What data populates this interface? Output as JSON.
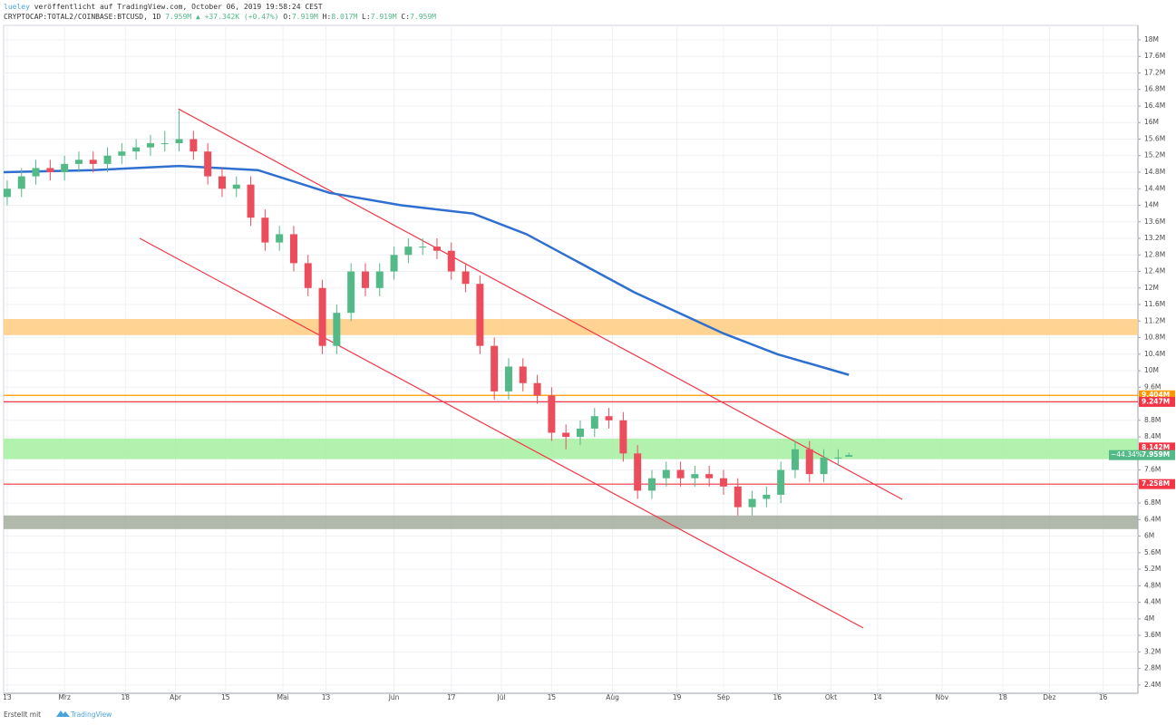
{
  "header": {
    "author": "lueley",
    "published": "veröffentlicht auf TradingView.com, October 06, 2019 19:58:24 CEST",
    "symbol": "CRYPTOCAP:TOTAL2/COINBASE:BTCUSD, 1D",
    "last": "7.959M",
    "change": "▲ +37.342K (+0.47%)",
    "o_label": "O:",
    "o": "7.919M",
    "h_label": "H:",
    "h": "8.017M",
    "l_label": "L:",
    "l": "7.919M",
    "c_label": "C:",
    "c": "7.959M"
  },
  "footer": {
    "text": "Erstellt mit",
    "brand": "TradingView"
  },
  "chart_data": {
    "type": "candlestick",
    "xlim": [
      -1,
      315.7
    ],
    "ylim": [
      2.2,
      18.35
    ],
    "grid": true,
    "up_color": "#53b987",
    "down_color": "#eb4d5c",
    "xticks": [
      {
        "value": 0,
        "label": "13"
      },
      {
        "value": 16,
        "label": "Mrz"
      },
      {
        "value": 33,
        "label": "18"
      },
      {
        "value": 47,
        "label": "Apr"
      },
      {
        "value": 61,
        "label": "15"
      },
      {
        "value": 77,
        "label": "Mai"
      },
      {
        "value": 89,
        "label": "13"
      },
      {
        "value": 108,
        "label": "Jun"
      },
      {
        "value": 124,
        "label": "17"
      },
      {
        "value": 138,
        "label": "Jul"
      },
      {
        "value": 152,
        "label": "15"
      },
      {
        "value": 169,
        "label": "Aug"
      },
      {
        "value": 187,
        "label": "19"
      },
      {
        "value": 200,
        "label": "Sep"
      },
      {
        "value": 215,
        "label": "16"
      },
      {
        "value": 230,
        "label": "Okt"
      },
      {
        "value": 243,
        "label": "14"
      },
      {
        "value": 261,
        "label": "Nov"
      },
      {
        "value": 278,
        "label": "18"
      },
      {
        "value": 291,
        "label": "Dez"
      },
      {
        "value": 306,
        "label": "16"
      }
    ],
    "yticks": [
      {
        "value": 18,
        "label": "18M"
      },
      {
        "value": 17.6,
        "label": "17.6M"
      },
      {
        "value": 17.2,
        "label": "17.2M"
      },
      {
        "value": 16.8,
        "label": "16.8M"
      },
      {
        "value": 16.4,
        "label": "16.4M"
      },
      {
        "value": 16,
        "label": "16M"
      },
      {
        "value": 15.6,
        "label": "15.6M"
      },
      {
        "value": 15.2,
        "label": "15.2M"
      },
      {
        "value": 14.8,
        "label": "14.8M"
      },
      {
        "value": 14.4,
        "label": "14.4M"
      },
      {
        "value": 14,
        "label": "14M"
      },
      {
        "value": 13.6,
        "label": "13.6M"
      },
      {
        "value": 13.2,
        "label": "13.2M"
      },
      {
        "value": 12.8,
        "label": "12.8M"
      },
      {
        "value": 12.4,
        "label": "12.4M"
      },
      {
        "value": 12,
        "label": "12M"
      },
      {
        "value": 11.6,
        "label": "11.6M"
      },
      {
        "value": 11.2,
        "label": "11.2M"
      },
      {
        "value": 10.8,
        "label": "10.8M"
      },
      {
        "value": 10.4,
        "label": "10.4M"
      },
      {
        "value": 10,
        "label": "10M"
      },
      {
        "value": 9.6,
        "label": "9.6M"
      },
      {
        "value": 9.2,
        "label": "9.2M"
      },
      {
        "value": 8.8,
        "label": "8.8M"
      },
      {
        "value": 8.4,
        "label": "8.4M"
      },
      {
        "value": 8,
        "label": "8M"
      },
      {
        "value": 7.6,
        "label": "7.6M"
      },
      {
        "value": 7.2,
        "label": "7.2M"
      },
      {
        "value": 6.8,
        "label": "6.8M"
      },
      {
        "value": 6.4,
        "label": "6.4M"
      },
      {
        "value": 6,
        "label": "6M"
      },
      {
        "value": 5.6,
        "label": "5.6M"
      },
      {
        "value": 5.2,
        "label": "5.2M"
      },
      {
        "value": 4.8,
        "label": "4.8M"
      },
      {
        "value": 4.4,
        "label": "4.4M"
      },
      {
        "value": 4,
        "label": "4M"
      },
      {
        "value": 3.6,
        "label": "3.6M"
      },
      {
        "value": 3.2,
        "label": "3.2M"
      },
      {
        "value": 2.8,
        "label": "2.8M"
      },
      {
        "value": 2.4,
        "label": "2.4M"
      }
    ],
    "x": [
      0,
      4,
      8,
      12,
      16,
      20,
      24,
      28,
      32,
      36,
      40,
      44,
      48,
      52,
      56,
      60,
      64,
      68,
      72,
      76,
      80,
      84,
      88,
      92,
      96,
      100,
      104,
      108,
      112,
      116,
      120,
      124,
      128,
      132,
      136,
      140,
      144,
      148,
      152,
      156,
      160,
      164,
      168,
      172,
      176,
      180,
      184,
      188,
      192,
      196,
      200,
      204,
      208,
      212,
      216,
      220,
      224,
      228,
      232,
      235
    ],
    "open": [
      14.2,
      14.4,
      14.7,
      14.9,
      14.8,
      15.0,
      15.1,
      15.0,
      15.2,
      15.3,
      15.4,
      15.5,
      15.5,
      15.6,
      15.3,
      14.7,
      14.4,
      14.5,
      13.7,
      13.1,
      13.3,
      12.6,
      12.0,
      10.6,
      11.4,
      12.4,
      12.0,
      12.4,
      12.8,
      13.0,
      13.0,
      12.9,
      12.4,
      12.1,
      10.6,
      9.5,
      10.1,
      9.7,
      9.4,
      8.5,
      8.4,
      8.6,
      8.9,
      8.8,
      8.0,
      7.1,
      7.4,
      7.6,
      7.4,
      7.5,
      7.4,
      7.2,
      6.7,
      6.9,
      7.0,
      7.6,
      8.1,
      7.5,
      7.9,
      7.919
    ],
    "high": [
      14.6,
      14.9,
      15.1,
      15.1,
      15.2,
      15.3,
      15.3,
      15.4,
      15.5,
      15.6,
      15.7,
      15.8,
      16.3,
      15.8,
      15.5,
      14.9,
      14.7,
      14.7,
      13.9,
      13.5,
      13.5,
      12.8,
      12.2,
      11.6,
      12.6,
      12.6,
      12.6,
      13.0,
      13.2,
      13.2,
      13.2,
      13.1,
      12.6,
      12.3,
      10.8,
      10.3,
      10.3,
      9.9,
      9.6,
      8.7,
      8.8,
      9.1,
      9.1,
      9.0,
      8.2,
      7.6,
      7.8,
      7.8,
      7.7,
      7.7,
      7.6,
      7.4,
      7.1,
      7.2,
      7.8,
      8.3,
      8.3,
      8.1,
      8.1,
      8.017
    ],
    "low": [
      14.0,
      14.2,
      14.5,
      14.6,
      14.6,
      14.8,
      14.8,
      14.8,
      15.0,
      15.1,
      15.2,
      15.3,
      15.3,
      15.1,
      14.5,
      14.2,
      14.2,
      13.5,
      12.9,
      12.9,
      12.4,
      11.8,
      10.4,
      10.4,
      11.2,
      11.8,
      11.8,
      12.2,
      12.6,
      12.8,
      12.7,
      12.2,
      11.9,
      10.4,
      9.3,
      9.3,
      9.5,
      9.2,
      8.3,
      8.1,
      8.2,
      8.4,
      8.6,
      7.8,
      6.9,
      6.9,
      7.2,
      7.2,
      7.2,
      7.2,
      7.0,
      6.5,
      6.5,
      6.7,
      6.8,
      7.4,
      7.3,
      7.3,
      7.7,
      7.919
    ],
    "close": [
      14.4,
      14.7,
      14.9,
      14.8,
      15.0,
      15.1,
      15.0,
      15.2,
      15.3,
      15.4,
      15.5,
      15.5,
      15.6,
      15.3,
      14.7,
      14.4,
      14.5,
      13.7,
      13.1,
      13.3,
      12.6,
      12.0,
      10.6,
      11.4,
      12.4,
      12.0,
      12.4,
      12.8,
      13.0,
      13.0,
      12.9,
      12.4,
      12.1,
      10.6,
      9.5,
      10.1,
      9.7,
      9.4,
      8.5,
      8.4,
      8.6,
      8.9,
      8.8,
      8.0,
      7.1,
      7.4,
      7.6,
      7.4,
      7.5,
      7.4,
      7.2,
      6.7,
      6.9,
      7.0,
      7.6,
      8.1,
      7.5,
      7.9,
      7.9,
      7.959
    ],
    "ma": {
      "color": "#2f6fd0",
      "x": [
        -1,
        24,
        48,
        70,
        90,
        110,
        130,
        145,
        160,
        175,
        190,
        200,
        215,
        235
      ],
      "values": [
        14.8,
        14.85,
        14.95,
        14.85,
        14.3,
        14.0,
        13.8,
        13.3,
        12.6,
        11.9,
        11.3,
        10.9,
        10.4,
        9.9
      ]
    },
    "zones": [
      {
        "from": 10.86,
        "to": 11.25,
        "color": "#ffcc80"
      },
      {
        "from": 7.86,
        "to": 8.36,
        "color": "#a5f0a0"
      },
      {
        "from": 6.17,
        "to": 6.5,
        "color": "#a3ad9e"
      }
    ],
    "hlines": [
      {
        "value": 9.404,
        "color": "#ff9800"
      },
      {
        "value": 9.247,
        "color": "#f23645"
      },
      {
        "value": 7.258,
        "color": "#f23645"
      }
    ],
    "trendlines": [
      {
        "color": "#f23645",
        "x": [
          47.8,
          249.9
        ],
        "y": [
          16.33,
          6.89
        ]
      },
      {
        "color": "#f23645",
        "x": [
          37,
          239
        ],
        "y": [
          13.2,
          3.78
        ]
      }
    ],
    "price_tags": [
      {
        "value": 9.404,
        "label": "9.404M",
        "color": "#ff9800"
      },
      {
        "value": 9.247,
        "label": "9.247M",
        "color": "#f23645"
      },
      {
        "value": 8.142,
        "label": "8.142M",
        "color": "#f23645"
      },
      {
        "value": 7.959,
        "label": "7.959M",
        "color": "#53b987"
      },
      {
        "value": 7.258,
        "label": "7.258M",
        "color": "#f23645"
      }
    ],
    "change_tag": "−44.34%"
  }
}
